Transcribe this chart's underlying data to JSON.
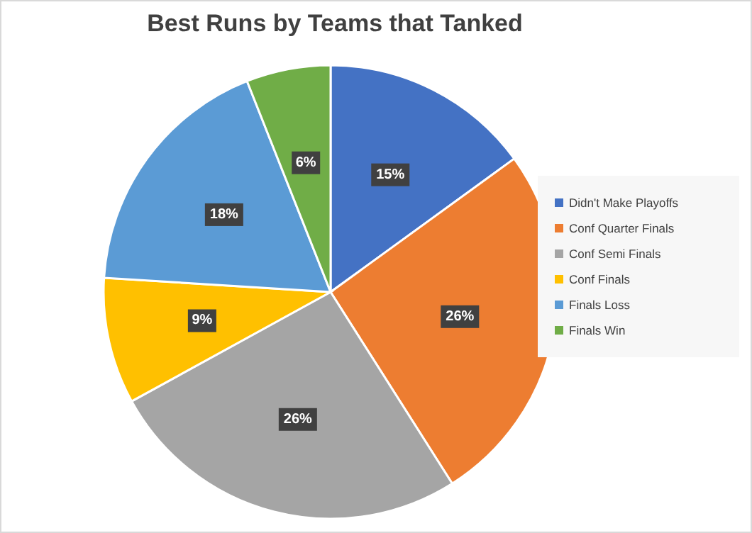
{
  "chart_data": {
    "type": "pie",
    "title": "Best Runs by Teams that Tanked",
    "categories": [
      "Didn't Make Playoffs",
      "Conf Quarter Finals",
      "Conf Semi Finals",
      "Conf Finals",
      "Finals Loss",
      "Finals Win"
    ],
    "values": [
      15,
      26,
      26,
      9,
      18,
      6
    ],
    "colors": [
      "#4472c4",
      "#ed7d31",
      "#a5a5a5",
      "#ffc000",
      "#5b9bd5",
      "#70ad47"
    ],
    "value_labels": [
      "15%",
      "26%",
      "26%",
      "9%",
      "18%",
      "6%"
    ],
    "legend": "right"
  }
}
